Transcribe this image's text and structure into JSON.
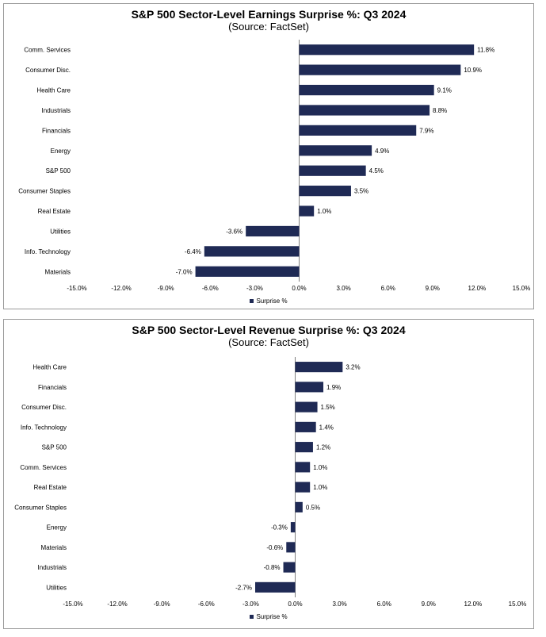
{
  "chart_data": [
    {
      "type": "bar",
      "orientation": "horizontal",
      "title": "S&P 500 Sector-Level Earnings Surprise %: Q3 2024",
      "subtitle": "(Source: FactSet)",
      "categories": [
        "Comm. Services",
        "Consumer Disc.",
        "Health Care",
        "Industrials",
        "Financials",
        "Energy",
        "S&P 500",
        "Consumer Staples",
        "Real Estate",
        "Utilities",
        "Info. Technology",
        "Materials"
      ],
      "series": [
        {
          "name": "Surprise %",
          "values": [
            11.8,
            10.9,
            9.1,
            8.8,
            7.9,
            4.9,
            4.5,
            3.5,
            1.0,
            -3.6,
            -6.4,
            -7.0
          ],
          "labels": [
            "11.8%",
            "10.9%",
            "9.1%",
            "8.8%",
            "7.9%",
            "4.9%",
            "4.5%",
            "3.5%",
            "1.0%",
            "-3.6%",
            "-6.4%",
            "-7.0%"
          ]
        }
      ],
      "xlim": [
        -15,
        15
      ],
      "xticks": [
        -15,
        -12,
        -9,
        -6,
        -3,
        0,
        3,
        6,
        9,
        12,
        15
      ],
      "xtick_labels": [
        "-15.0%",
        "-12.0%",
        "-9.0%",
        "-6.0%",
        "-3.0%",
        "0.0%",
        "3.0%",
        "6.0%",
        "9.0%",
        "12.0%",
        "15.0%"
      ],
      "legend": "bottom",
      "grid": false,
      "bar_color": "#1f2a55"
    },
    {
      "type": "bar",
      "orientation": "horizontal",
      "title": "S&P 500 Sector-Level Revenue Surprise %: Q3 2024",
      "subtitle": "(Source: FactSet)",
      "categories": [
        "Health Care",
        "Financials",
        "Consumer Disc.",
        "Info. Technology",
        "S&P 500",
        "Comm. Services",
        "Real Estate",
        "Consumer Staples",
        "Energy",
        "Materials",
        "Industrials",
        "Utilities"
      ],
      "series": [
        {
          "name": "Surprise %",
          "values": [
            3.2,
            1.9,
            1.5,
            1.4,
            1.2,
            1.0,
            1.0,
            0.5,
            -0.3,
            -0.6,
            -0.8,
            -2.7
          ],
          "labels": [
            "3.2%",
            "1.9%",
            "1.5%",
            "1.4%",
            "1.2%",
            "1.0%",
            "1.0%",
            "0.5%",
            "-0.3%",
            "-0.6%",
            "-0.8%",
            "-2.7%"
          ]
        }
      ],
      "xlim": [
        -15,
        15
      ],
      "xticks": [
        -15,
        -12,
        -9,
        -6,
        -3,
        0,
        3,
        6,
        9,
        12,
        15
      ],
      "xtick_labels": [
        "-15.0%",
        "-12.0%",
        "-9.0%",
        "-6.0%",
        "-3.0%",
        "0.0%",
        "3.0%",
        "6.0%",
        "9.0%",
        "12.0%",
        "15.0%"
      ],
      "legend": "bottom",
      "grid": false,
      "bar_color": "#1f2a55"
    }
  ]
}
